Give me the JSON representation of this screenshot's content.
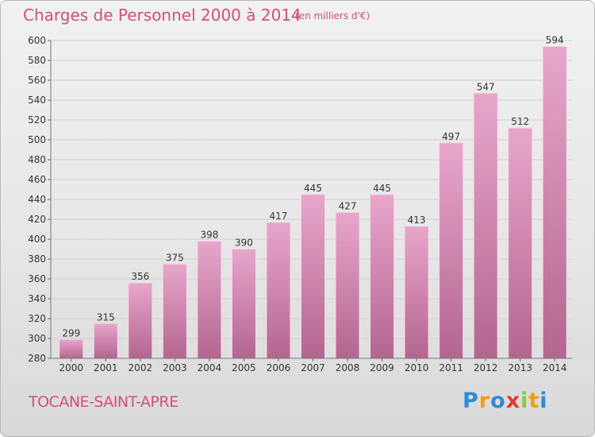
{
  "header": {
    "title": "Charges de Personnel 2000 à 2014",
    "unit": "(en milliers d'€)"
  },
  "footer": {
    "town": "TOCANE-SAINT-APRE",
    "logo_letters": [
      "P",
      "r",
      "o",
      "x",
      "i",
      "t",
      "i"
    ],
    "logo_colors": [
      "#2e8bd0",
      "#f39c12",
      "#2e8bd0",
      "#e03c31",
      "#8cc63f",
      "#f39c12",
      "#2e8bd0"
    ]
  },
  "chart_data": {
    "type": "bar",
    "title": "Charges de Personnel 2000 à 2014",
    "subtitle": "(en milliers d'€)",
    "xlabel": "",
    "ylabel": "",
    "categories": [
      "2000",
      "2001",
      "2002",
      "2003",
      "2004",
      "2005",
      "2006",
      "2007",
      "2008",
      "2009",
      "2010",
      "2011",
      "2012",
      "2013",
      "2014"
    ],
    "values": [
      299,
      315,
      356,
      375,
      398,
      390,
      417,
      445,
      427,
      445,
      413,
      497,
      547,
      512,
      594
    ],
    "ylim": [
      280,
      600
    ],
    "yticks": [
      280,
      300,
      320,
      340,
      360,
      380,
      400,
      420,
      440,
      460,
      480,
      500,
      520,
      540,
      560,
      580,
      600
    ],
    "grid": true,
    "bar_color_top": "#e8a6cb",
    "bar_color_bottom": "#b3668f"
  }
}
